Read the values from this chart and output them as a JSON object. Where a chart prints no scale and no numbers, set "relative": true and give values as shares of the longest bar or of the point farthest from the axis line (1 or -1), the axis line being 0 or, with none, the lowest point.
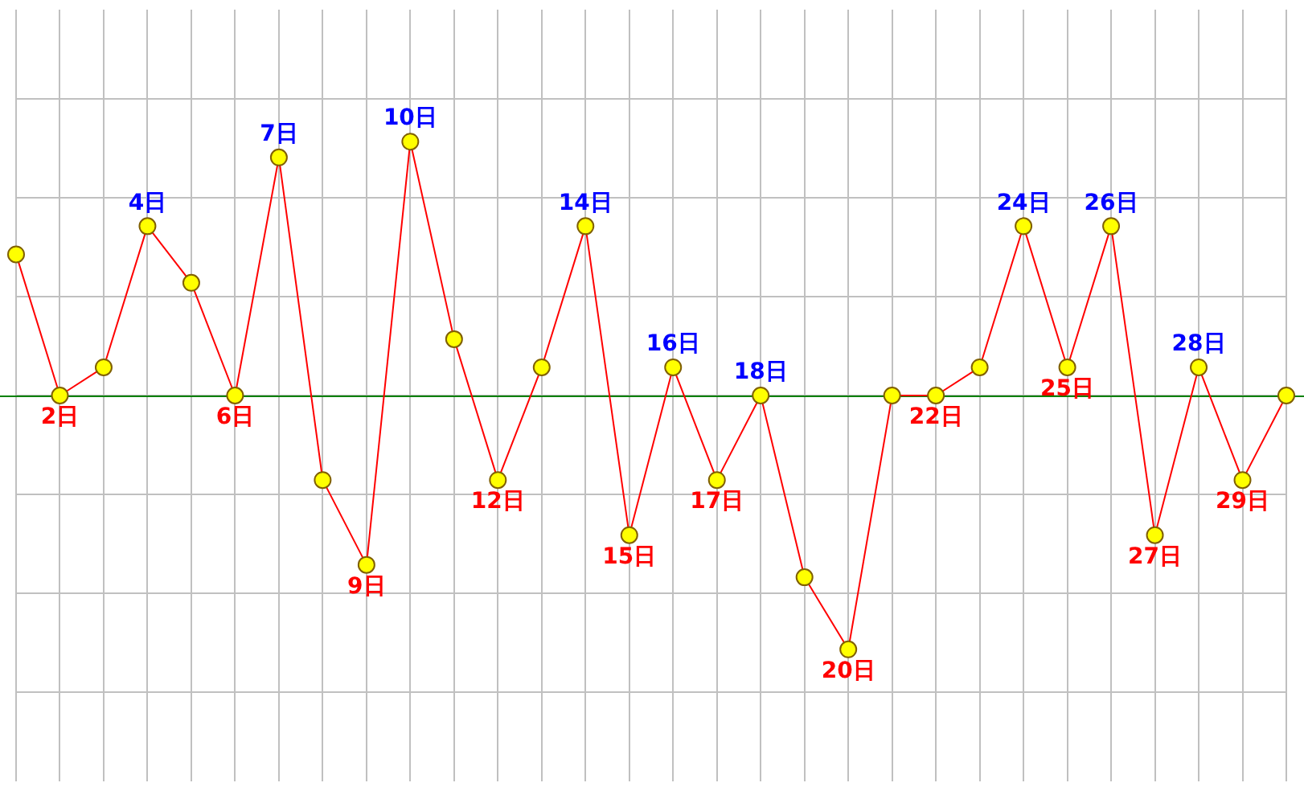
{
  "chart_data": {
    "type": "line",
    "relative": true,
    "grid": true,
    "marker": "circle",
    "legend": false,
    "categories": [
      null,
      "2日",
      null,
      "4日",
      null,
      "6日",
      "7日",
      null,
      "9日",
      "10日",
      null,
      "12日",
      null,
      "14日",
      "15日",
      "16日",
      "17日",
      "18日",
      null,
      "20日",
      null,
      "22日",
      null,
      "24日",
      "25日",
      "26日",
      "27日",
      "28日",
      "29日",
      null
    ],
    "series": [
      {
        "color": "#ff0000",
        "values": [
          0.556,
          0,
          0.111,
          0.667,
          0.444,
          0,
          0.938,
          -0.333,
          -0.667,
          1,
          0.222,
          -0.333,
          0.111,
          0.667,
          -0.55,
          0.111,
          -0.333,
          0,
          -0.716,
          -1,
          0,
          0,
          0.111,
          0.667,
          0.111,
          0.667,
          -0.55,
          0.111,
          -0.333,
          0
        ]
      }
    ]
  }
}
